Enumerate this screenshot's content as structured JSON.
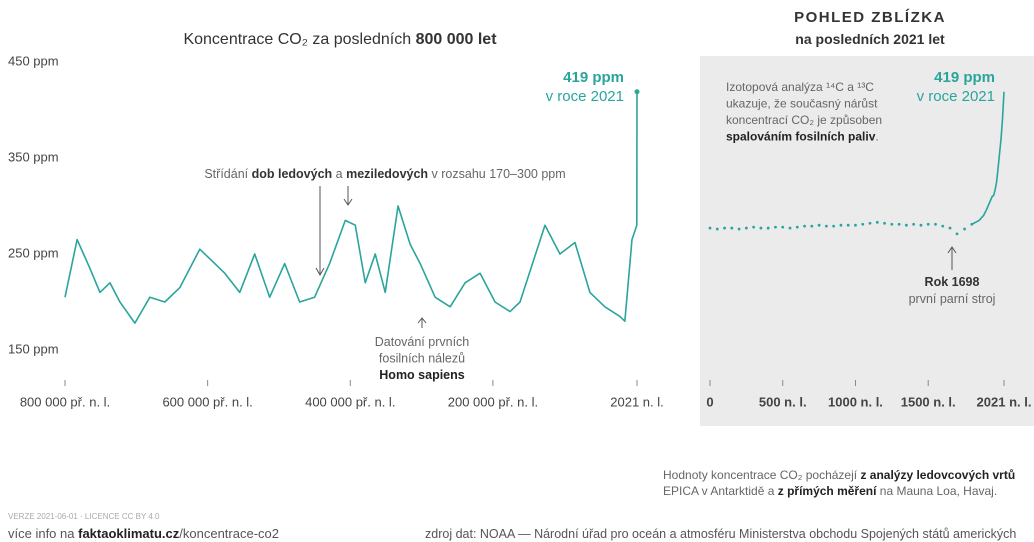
{
  "chart_data": [
    {
      "type": "line",
      "title": [
        [
          "Koncentrace CO₂ za posledních ",
          {
            "text": "800 000 let",
            "bold": true
          }
        ]
      ],
      "xlim": [
        -800000,
        2021
      ],
      "xticks": [
        {
          "value": -800000,
          "label": "800 000 př. n. l."
        },
        {
          "value": -600000,
          "label": "600 000 př. n. l."
        },
        {
          "value": -400000,
          "label": "400 000 př. n. l."
        },
        {
          "value": -200000,
          "label": "200 000 př. n. l."
        },
        {
          "value": 2021,
          "label": "2021 n. l."
        }
      ],
      "ylim": [
        150,
        450
      ],
      "yticks": [
        {
          "value": 150,
          "label": "150 ppm"
        },
        {
          "value": 250,
          "label": "250 ppm"
        },
        {
          "value": 350,
          "label": "350 ppm"
        },
        {
          "value": 450,
          "label": "450 ppm"
        }
      ],
      "series": [
        {
          "color": "#2aa59c",
          "style": "line",
          "x": [
            -800000,
            -783000,
            -765000,
            -751000,
            -737000,
            -723000,
            -702000,
            -681000,
            -660000,
            -639000,
            -611000,
            -590000,
            -576000,
            -555000,
            -534000,
            -513000,
            -492000,
            -471000,
            -450000,
            -429000,
            -407000,
            -393000,
            -379000,
            -365000,
            -351000,
            -333000,
            -316000,
            -302000,
            -281000,
            -260000,
            -239000,
            -218000,
            -197000,
            -176000,
            -162000,
            -127000,
            -106000,
            -85000,
            -64000,
            -43000,
            -22000,
            -15000,
            -5000,
            1750,
            2021
          ],
          "values": [
            205,
            265,
            235,
            210,
            220,
            200,
            178,
            205,
            200,
            215,
            255,
            240,
            230,
            210,
            250,
            205,
            240,
            200,
            205,
            240,
            285,
            280,
            220,
            250,
            210,
            300,
            260,
            240,
            205,
            195,
            220,
            230,
            200,
            190,
            200,
            280,
            250,
            262,
            210,
            195,
            185,
            180,
            265,
            280,
            419
          ]
        }
      ],
      "annotations": {
        "current": [
          [
            {
              "text": "419 ppm",
              "bold": true
            }
          ],
          [
            "v roce 2021"
          ]
        ],
        "cycles": [
          [
            "Střídání ",
            {
              "text": "dob ledových",
              "bold": true
            },
            " a ",
            {
              "text": "meziledových",
              "bold": true
            },
            " v rozsahu 170–300 ppm"
          ]
        ],
        "sapiens": [
          [
            "Datování prvních"
          ],
          [
            "fosilních nálezů"
          ],
          [
            {
              "text": "Homo sapiens",
              "bold": true
            }
          ]
        ]
      }
    },
    {
      "type": "line",
      "title": [
        [
          {
            "text": "POHLED ZBLÍZKA",
            "bold": true
          }
        ]
      ],
      "subtitle": [
        [
          {
            "text": "na posledních 2021 let",
            "bold": true
          }
        ]
      ],
      "xlim": [
        0,
        2021
      ],
      "xticks": [
        0,
        {
          "value": 500,
          "label": "500 n. l."
        },
        {
          "value": 1000,
          "label": "1000 n. l."
        },
        {
          "value": 1500,
          "label": "1500 n. l."
        },
        {
          "value": 2021,
          "label": "2021 n. l."
        }
      ],
      "ylim": [
        150,
        450
      ],
      "series": [
        {
          "color": "#2aa59c",
          "style": "dots",
          "x": [
            0,
            50,
            100,
            150,
            200,
            250,
            300,
            350,
            400,
            450,
            500,
            550,
            600,
            650,
            700,
            750,
            800,
            850,
            900,
            950,
            1000,
            1050,
            1100,
            1150,
            1200,
            1250,
            1300,
            1350,
            1400,
            1450,
            1500,
            1550,
            1600,
            1650,
            1698,
            1750,
            1800
          ],
          "values": [
            277,
            276,
            277,
            277,
            276,
            277,
            278,
            277,
            277,
            278,
            278,
            277,
            278,
            279,
            279,
            280,
            279,
            279,
            280,
            280,
            280,
            281,
            282,
            283,
            282,
            281,
            281,
            280,
            281,
            280,
            281,
            281,
            279,
            277,
            271,
            276,
            281
          ]
        },
        {
          "color": "#2aa59c",
          "style": "line",
          "x": [
            1800,
            1850,
            1880,
            1900,
            1920,
            1940,
            1950,
            1960,
            1970,
            1980,
            1990,
            2000,
            2010,
            2021
          ],
          "values": [
            281,
            285,
            290,
            296,
            303,
            310,
            311,
            317,
            325,
            339,
            354,
            369,
            389,
            419
          ]
        }
      ],
      "annotations": {
        "current": [
          [
            {
              "text": "419 ppm",
              "bold": true
            }
          ],
          [
            "v roce 2021"
          ]
        ],
        "isotope": [
          [
            "Izotopová analýza ¹⁴C a ¹³C"
          ],
          [
            "ukazuje, že současný nárůst"
          ],
          [
            "koncentrací CO₂ je způsoben"
          ],
          [
            {
              "text": "spalováním fosilních paliv",
              "bold": true
            },
            "."
          ]
        ],
        "engine": [
          [
            {
              "text": "Rok 1698",
              "bold": true
            }
          ],
          [
            "první parní stroj"
          ]
        ]
      }
    }
  ],
  "footer": {
    "note": [
      [
        "Hodnoty koncentrace CO₂ pocházejí ",
        {
          "text": "z analýzy ledovcových vrtů",
          "bold": true
        }
      ],
      [
        "EPICA v Antarktidě a ",
        {
          "text": "z přímých měření",
          "bold": true
        },
        " na Mauna Loa, Havaj."
      ]
    ],
    "version": [
      [
        "VERZE 2021-06-01 · LICENCE CC BY 4.0"
      ]
    ],
    "info": [
      [
        "více info na ",
        {
          "text": "faktaoklimatu.cz",
          "bold": true
        },
        "/koncentrace-co2"
      ]
    ],
    "source": [
      [
        "zdroj dat: NOAA — Národní úřad pro oceán a atmosféru Ministerstva obchodu Spojených států amerických"
      ]
    ]
  }
}
